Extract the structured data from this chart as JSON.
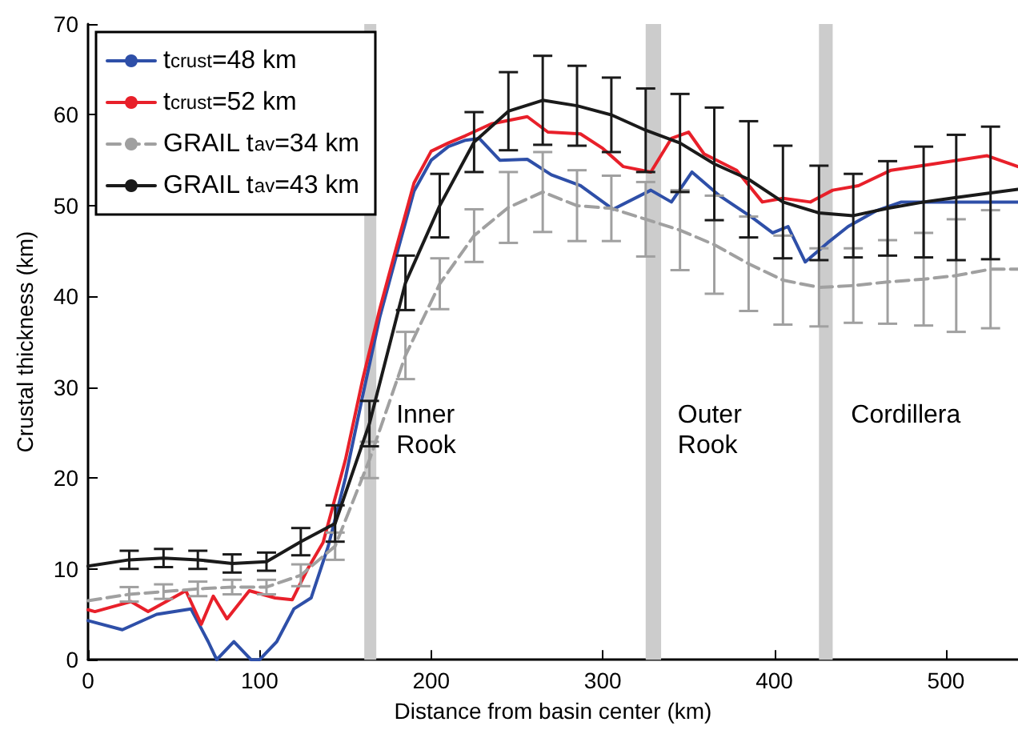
{
  "chart_data": {
    "type": "line",
    "xlabel": "Distance from basin center (km)",
    "ylabel": "Crustal thickness (km)",
    "xlim": [
      0,
      542
    ],
    "ylim": [
      0,
      70
    ],
    "xticks": [
      0,
      100,
      200,
      300,
      400,
      500
    ],
    "yticks": [
      0,
      10,
      20,
      30,
      40,
      50,
      60,
      70
    ],
    "grid": false,
    "legend": "top left",
    "marker": "none",
    "bands": [
      {
        "axis": "x",
        "from": 161,
        "to": 168,
        "label": "Inner Rook",
        "color": "#cccccc"
      },
      {
        "axis": "x",
        "from": 325,
        "to": 334,
        "label": "Outer Rook",
        "color": "#cccccc"
      },
      {
        "axis": "x",
        "from": 426,
        "to": 434,
        "label": "Cordillera",
        "color": "#cccccc"
      }
    ],
    "series": [
      {
        "name": "t$_{crust}$=48 km",
        "color": "#2e4fa8",
        "line_style": "solid",
        "x": [
          0,
          20,
          40,
          60,
          70,
          75,
          85,
          95,
          100,
          110,
          120,
          130,
          140,
          150,
          160,
          170,
          180,
          190,
          200,
          210,
          220,
          228,
          240,
          256,
          270,
          287,
          306,
          328,
          340,
          352,
          368,
          387,
          399,
          408,
          418,
          431,
          443,
          459,
          474,
          506,
          542
        ],
        "values": [
          4.3,
          3.3,
          5,
          5.6,
          2,
          0,
          2,
          0,
          0,
          2,
          5.6,
          6.8,
          12.5,
          20,
          29,
          37.7,
          44.7,
          51.6,
          55,
          56.5,
          57.2,
          57.4,
          55,
          55.1,
          53.4,
          52.2,
          49.6,
          51.7,
          50.4,
          53.7,
          51.1,
          48.7,
          47,
          47.7,
          43.8,
          45.9,
          47.7,
          49.4,
          50.4,
          50.4,
          50.4
        ]
      },
      {
        "name": "t$_{crust}$=52 km",
        "color": "#e8202a",
        "line_style": "solid",
        "x": [
          0,
          4,
          25,
          35,
          57,
          66,
          73,
          81,
          94,
          109,
          119,
          128,
          137,
          150,
          160,
          170,
          180,
          190,
          200,
          210,
          220,
          235,
          256,
          268,
          287,
          300,
          312,
          328,
          340,
          350,
          359,
          378,
          393,
          405,
          421,
          434,
          449,
          468,
          493,
          524,
          542
        ],
        "values": [
          5.5,
          5.3,
          6.4,
          5.3,
          7.6,
          3.9,
          7,
          4.5,
          7.6,
          6.8,
          6.6,
          10,
          12.9,
          22,
          30.8,
          38.6,
          45.6,
          52.5,
          56,
          56.9,
          57.7,
          59,
          59.8,
          58.1,
          57.9,
          56.3,
          54.3,
          53.7,
          57.4,
          58.1,
          55.7,
          53.9,
          50.4,
          50.8,
          50.4,
          51.7,
          52.2,
          53.9,
          54.6,
          55.5,
          54.3
        ]
      },
      {
        "name": "GRAIL t$_{av}$=34 km",
        "color": "#a0a0a0",
        "line_style": "dashed",
        "x": [
          0,
          24,
          44,
          64,
          84,
          104,
          124,
          144,
          164,
          185,
          205,
          225,
          245,
          265,
          285,
          305,
          325,
          345,
          365,
          385,
          405,
          426,
          446,
          466,
          487,
          506,
          526,
          542
        ],
        "values": [
          6.5,
          7.2,
          7.5,
          7.8,
          8,
          8,
          9.3,
          12.5,
          22,
          33.5,
          41.4,
          46.7,
          49.8,
          51.5,
          50,
          49.7,
          48.5,
          47.3,
          45.7,
          43.6,
          41.8,
          41,
          41.2,
          41.6,
          41.9,
          42.3,
          43,
          43
        ],
        "errors": [
          null,
          0.8,
          0.8,
          0.8,
          0.8,
          0.8,
          1.2,
          1.5,
          2,
          2.6,
          2.8,
          2.9,
          3.9,
          4.4,
          3.9,
          3.6,
          4.1,
          4.4,
          5.4,
          5.2,
          4.9,
          4.3,
          4.1,
          4.6,
          5.1,
          6.2,
          6.5,
          null
        ]
      },
      {
        "name": "GRAIL t$_{av}$=43 km",
        "color": "#1a1a1a",
        "line_style": "solid",
        "x": [
          0,
          24,
          44,
          64,
          84,
          104,
          124,
          144,
          164,
          185,
          205,
          225,
          245,
          265,
          285,
          305,
          325,
          345,
          365,
          385,
          405,
          426,
          446,
          466,
          487,
          506,
          526,
          542
        ],
        "values": [
          10.3,
          11,
          11.2,
          11,
          10.6,
          10.8,
          13,
          15,
          26,
          41.5,
          50,
          57,
          60.4,
          61.6,
          61,
          60,
          58.3,
          56.9,
          54.6,
          52.9,
          50.4,
          49.2,
          48.9,
          49.7,
          50.4,
          50.9,
          51.4,
          51.8
        ],
        "errors": [
          null,
          1,
          1,
          1,
          1,
          1,
          1.5,
          2,
          2.5,
          3,
          3.5,
          3.3,
          4.3,
          4.9,
          4.4,
          4.1,
          4.6,
          5.4,
          6.2,
          6.4,
          6.2,
          5.2,
          4.6,
          5.2,
          6.1,
          6.9,
          7.3,
          null
        ]
      }
    ]
  }
}
